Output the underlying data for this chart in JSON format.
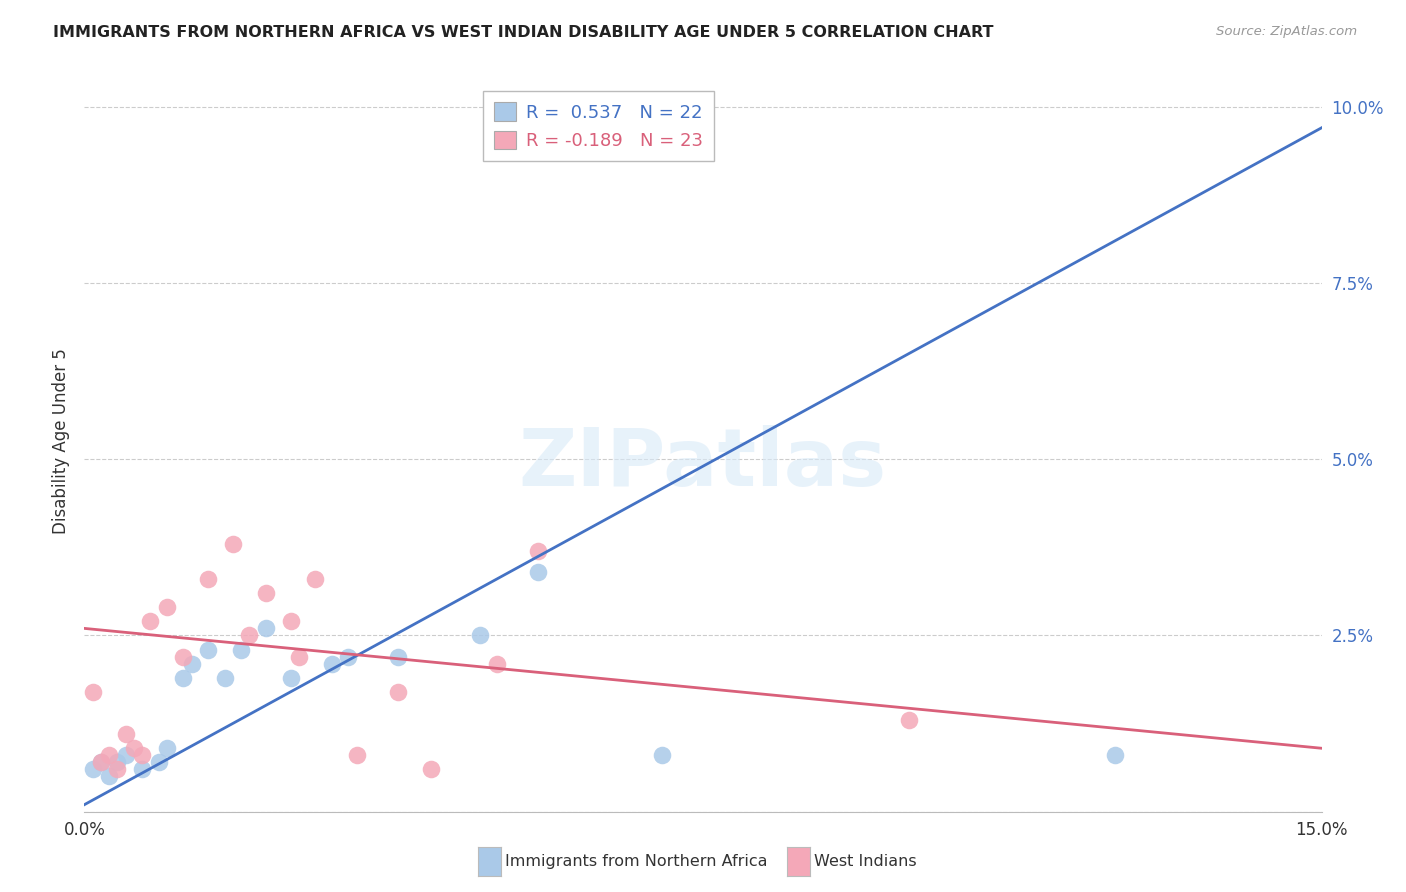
{
  "title": "IMMIGRANTS FROM NORTHERN AFRICA VS WEST INDIAN DISABILITY AGE UNDER 5 CORRELATION CHART",
  "source": "Source: ZipAtlas.com",
  "ylabel": "Disability Age Under 5",
  "xlim": [
    0.0,
    0.15
  ],
  "ylim": [
    0.0,
    0.105
  ],
  "ytick_vals": [
    0.0,
    0.025,
    0.05,
    0.075,
    0.1
  ],
  "ytick_labels": [
    "",
    "2.5%",
    "5.0%",
    "7.5%",
    "10.0%"
  ],
  "xtick_vals": [
    0.0,
    0.15
  ],
  "xtick_labels": [
    "0.0%",
    "15.0%"
  ],
  "legend1_r": "0.537",
  "legend1_n": "22",
  "legend2_r": "-0.189",
  "legend2_n": "23",
  "watermark": "ZIPatlas",
  "blue_color": "#aac9e8",
  "blue_line_color": "#4472c4",
  "pink_color": "#f4a8b8",
  "pink_line_color": "#d9607a",
  "blue_scatter_x": [
    0.001,
    0.002,
    0.003,
    0.004,
    0.005,
    0.007,
    0.009,
    0.01,
    0.012,
    0.013,
    0.015,
    0.017,
    0.019,
    0.022,
    0.025,
    0.03,
    0.032,
    0.038,
    0.048,
    0.055,
    0.07,
    0.125
  ],
  "blue_scatter_y": [
    0.006,
    0.007,
    0.005,
    0.007,
    0.008,
    0.006,
    0.007,
    0.009,
    0.019,
    0.021,
    0.023,
    0.019,
    0.023,
    0.026,
    0.019,
    0.021,
    0.022,
    0.022,
    0.025,
    0.034,
    0.008,
    0.008
  ],
  "pink_scatter_x": [
    0.001,
    0.002,
    0.003,
    0.004,
    0.005,
    0.006,
    0.007,
    0.008,
    0.01,
    0.012,
    0.015,
    0.018,
    0.02,
    0.022,
    0.025,
    0.026,
    0.028,
    0.033,
    0.038,
    0.042,
    0.05,
    0.055,
    0.1
  ],
  "pink_scatter_y": [
    0.017,
    0.007,
    0.008,
    0.006,
    0.011,
    0.009,
    0.008,
    0.027,
    0.029,
    0.022,
    0.033,
    0.038,
    0.025,
    0.031,
    0.027,
    0.022,
    0.033,
    0.008,
    0.017,
    0.006,
    0.021,
    0.037,
    0.013
  ],
  "blue_line_x": [
    0.0,
    0.15
  ],
  "blue_line_y": [
    0.001,
    0.097
  ],
  "pink_line_x": [
    0.0,
    0.15
  ],
  "pink_line_y": [
    0.026,
    0.009
  ],
  "bottom_legend_labels": [
    "Immigrants from Northern Africa",
    "West Indians"
  ],
  "bottom_legend_colors": [
    "#aac9e8",
    "#f4a8b8"
  ]
}
